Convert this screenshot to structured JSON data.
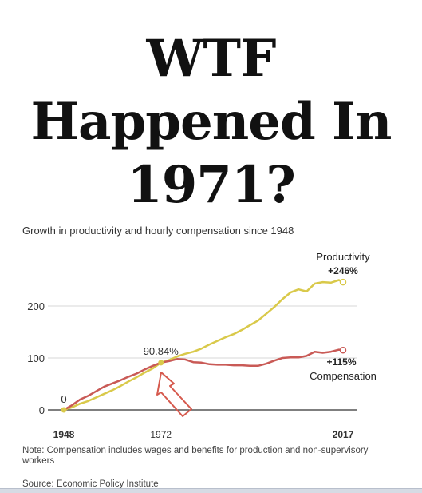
{
  "headline": {
    "line1": "WTF",
    "line2": "Happened In",
    "line3": "1971?"
  },
  "chart_data": {
    "type": "line",
    "title": "Growth in productivity and hourly compensation since 1948",
    "yticks": [
      0,
      100,
      200
    ],
    "xlim": [
      1948,
      2017
    ],
    "ylim": [
      0,
      260
    ],
    "x_tick_labels": [
      {
        "x": 1948,
        "label": "1948",
        "bold": true
      },
      {
        "x": 1972,
        "label": "1972",
        "bold": false
      },
      {
        "x": 2017,
        "label": "2017",
        "bold": true
      }
    ],
    "annotations": {
      "start": "0",
      "pivot": "90.84%",
      "productivity_name": "Productivity",
      "productivity_change": "+246%",
      "compensation_change": "+115%",
      "compensation_name": "Compensation"
    },
    "series": [
      {
        "name": "Productivity",
        "color": "#d9c94a",
        "x": [
          1948,
          1950,
          1952,
          1954,
          1956,
          1958,
          1960,
          1962,
          1964,
          1966,
          1968,
          1970,
          1972,
          1974,
          1976,
          1978,
          1980,
          1982,
          1984,
          1986,
          1988,
          1990,
          1992,
          1994,
          1996,
          1998,
          2000,
          2002,
          2004,
          2006,
          2008,
          2010,
          2012,
          2014,
          2016,
          2017
        ],
        "values": [
          0,
          5,
          12,
          17,
          24,
          31,
          38,
          46,
          55,
          63,
          72,
          80,
          91,
          96,
          103,
          108,
          112,
          118,
          126,
          133,
          140,
          146,
          154,
          163,
          172,
          185,
          198,
          213,
          226,
          232,
          228,
          243,
          246,
          245,
          250,
          246
        ]
      },
      {
        "name": "Compensation",
        "color": "#c95a56",
        "x": [
          1948,
          1950,
          1952,
          1954,
          1956,
          1958,
          1960,
          1962,
          1964,
          1966,
          1968,
          1970,
          1972,
          1974,
          1976,
          1978,
          1980,
          1982,
          1984,
          1986,
          1988,
          1990,
          1992,
          1994,
          1996,
          1998,
          2000,
          2002,
          2004,
          2006,
          2008,
          2010,
          2012,
          2014,
          2016,
          2017
        ],
        "values": [
          0,
          9,
          20,
          27,
          36,
          45,
          51,
          57,
          64,
          70,
          78,
          85,
          91,
          94,
          98,
          97,
          92,
          91,
          88,
          87,
          87,
          86,
          86,
          85,
          85,
          89,
          95,
          100,
          101,
          101,
          104,
          112,
          110,
          112,
          116,
          115
        ]
      }
    ],
    "marker_color": "#d9c94a",
    "arrow_color": "#d65a4e"
  },
  "note": "Note: Compensation includes wages and benefits for production and non-supervisory workers",
  "source": "Source: Economic Policy Institute"
}
